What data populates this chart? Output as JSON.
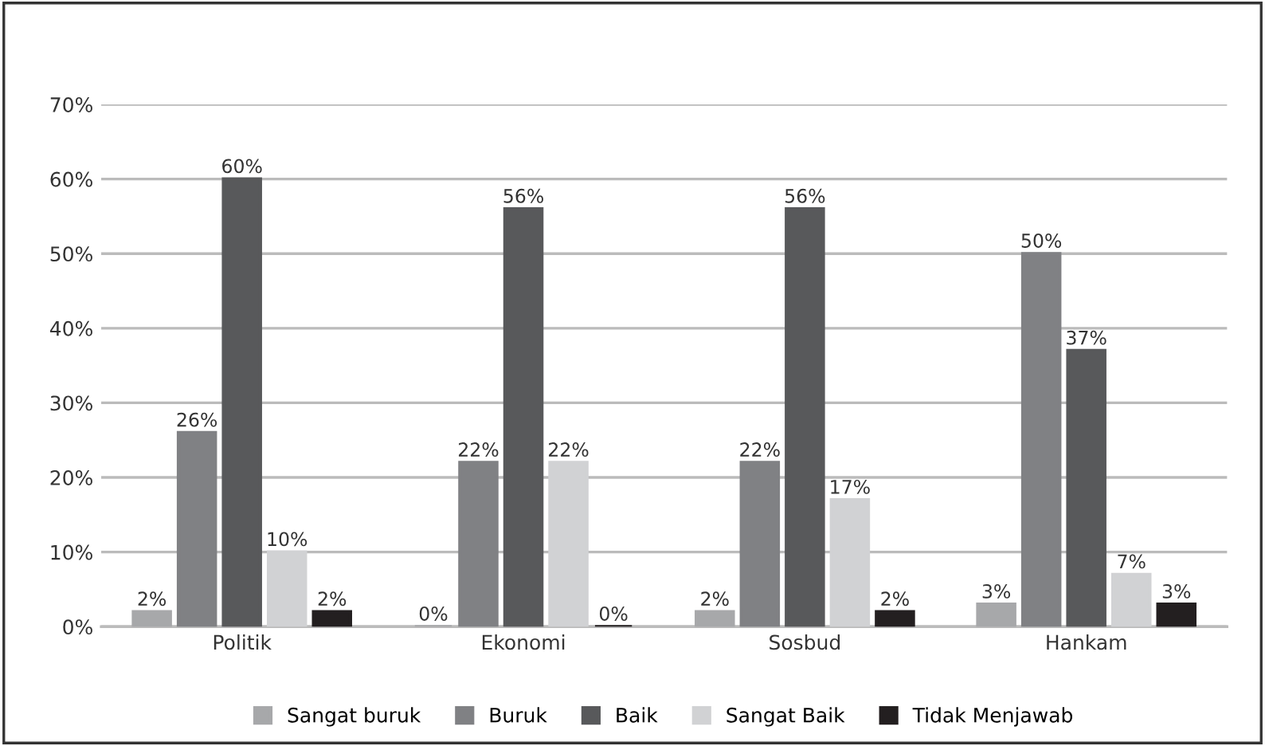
{
  "chart_data": {
    "type": "bar",
    "categories": [
      "Politik",
      "Ekonomi",
      "Sosbud",
      "Hankam"
    ],
    "series": [
      {
        "name": "Sangat buruk",
        "color": "#a7a8aa",
        "values": [
          2,
          0,
          2,
          3
        ],
        "value_labels": [
          "2%",
          "0%",
          "2%",
          "3%"
        ]
      },
      {
        "name": "Buruk",
        "color": "#808184",
        "values": [
          26,
          22,
          22,
          50
        ],
        "value_labels": [
          "26%",
          "22%",
          "22%",
          "50%"
        ]
      },
      {
        "name": "Baik",
        "color": "#58595b",
        "values": [
          60,
          56,
          56,
          37
        ],
        "value_labels": [
          "60%",
          "56%",
          "56%",
          "37%"
        ]
      },
      {
        "name": "Sangat Baik",
        "color": "#d1d2d4",
        "values": [
          10,
          22,
          17,
          7
        ],
        "value_labels": [
          "10%",
          "22%",
          "17%",
          "7%"
        ]
      },
      {
        "name": "Tidak Menjawab",
        "color": "#231f20",
        "values": [
          2,
          0,
          2,
          3
        ],
        "value_labels": [
          "2%",
          "0%",
          "2%",
          "3%"
        ]
      }
    ],
    "ylim": [
      0,
      70
    ],
    "yticks": [
      {
        "value": 0,
        "label": "0%"
      },
      {
        "value": 10,
        "label": "10%"
      },
      {
        "value": 20,
        "label": "20%"
      },
      {
        "value": 30,
        "label": "30%"
      },
      {
        "value": 40,
        "label": "40%"
      },
      {
        "value": 50,
        "label": "50%"
      },
      {
        "value": 60,
        "label": "60%"
      },
      {
        "value": 70,
        "label": "70%"
      }
    ],
    "grid": "y",
    "legend": "bottom"
  }
}
